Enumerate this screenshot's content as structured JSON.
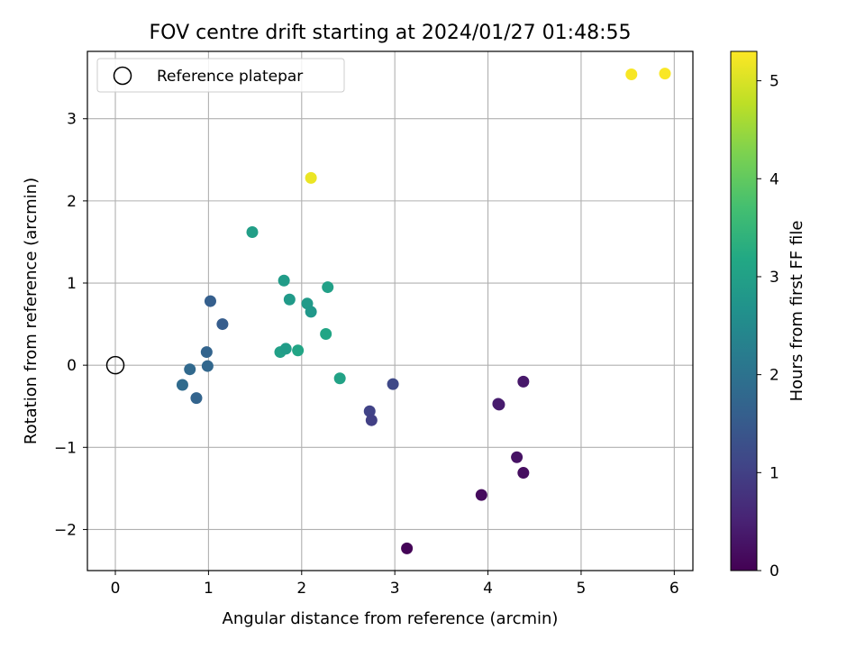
{
  "chart_data": {
    "type": "scatter",
    "title": "FOV centre drift starting at 2024/01/27 01:48:55",
    "xlabel": "Angular distance from reference (arcmin)",
    "ylabel": "Rotation from reference (arcmin)",
    "xlim": [
      -0.3,
      6.2
    ],
    "ylim": [
      -2.5,
      3.82
    ],
    "xticks": [
      0,
      1,
      2,
      3,
      4,
      5,
      6
    ],
    "xtick_labels": [
      "0",
      "1",
      "2",
      "3",
      "4",
      "5",
      "6"
    ],
    "yticks": [
      -2,
      -1,
      0,
      1,
      2,
      3
    ],
    "ytick_labels": [
      "−2",
      "−1",
      "0",
      "1",
      "2",
      "3"
    ],
    "grid": true,
    "legend": {
      "location": "upper-left",
      "entries": [
        "Reference platepar"
      ]
    },
    "reference_point": {
      "x": 0,
      "y": 0
    },
    "colorbar": {
      "label": "Hours from first FF file",
      "colormap": "viridis",
      "range": [
        0,
        5.3
      ],
      "ticks": [
        0,
        1,
        2,
        3,
        4,
        5
      ],
      "tick_labels": [
        "0",
        "1",
        "2",
        "3",
        "4",
        "5"
      ]
    },
    "points": [
      {
        "x": 5.54,
        "y": 3.54,
        "hours": 5.25
      },
      {
        "x": 5.9,
        "y": 3.55,
        "hours": 5.27
      },
      {
        "x": 2.1,
        "y": 2.28,
        "hours": 5.15
      },
      {
        "x": 1.47,
        "y": 1.62,
        "hours": 2.95
      },
      {
        "x": 1.81,
        "y": 1.03,
        "hours": 2.9
      },
      {
        "x": 1.87,
        "y": 0.8,
        "hours": 2.85
      },
      {
        "x": 2.28,
        "y": 0.95,
        "hours": 3.0
      },
      {
        "x": 2.06,
        "y": 0.75,
        "hours": 2.85
      },
      {
        "x": 2.1,
        "y": 0.65,
        "hours": 2.8
      },
      {
        "x": 2.26,
        "y": 0.38,
        "hours": 3.1
      },
      {
        "x": 1.77,
        "y": 0.16,
        "hours": 3.0
      },
      {
        "x": 1.83,
        "y": 0.2,
        "hours": 2.9
      },
      {
        "x": 1.96,
        "y": 0.18,
        "hours": 3.1
      },
      {
        "x": 2.41,
        "y": -0.16,
        "hours": 3.05
      },
      {
        "x": 1.02,
        "y": 0.78,
        "hours": 1.6
      },
      {
        "x": 1.15,
        "y": 0.5,
        "hours": 1.55
      },
      {
        "x": 0.98,
        "y": 0.16,
        "hours": 1.7
      },
      {
        "x": 0.99,
        "y": -0.01,
        "hours": 1.75
      },
      {
        "x": 0.8,
        "y": -0.05,
        "hours": 1.8
      },
      {
        "x": 0.72,
        "y": -0.24,
        "hours": 1.85
      },
      {
        "x": 0.87,
        "y": -0.4,
        "hours": 1.7
      },
      {
        "x": 2.98,
        "y": -0.23,
        "hours": 1.15
      },
      {
        "x": 2.73,
        "y": -0.56,
        "hours": 1.05
      },
      {
        "x": 2.75,
        "y": -0.67,
        "hours": 1.0
      },
      {
        "x": 4.38,
        "y": -0.2,
        "hours": 0.35
      },
      {
        "x": 4.11,
        "y": -0.47,
        "hours": 0.45
      },
      {
        "x": 4.12,
        "y": -0.48,
        "hours": 0.4
      },
      {
        "x": 4.31,
        "y": -1.12,
        "hours": 0.25
      },
      {
        "x": 4.38,
        "y": -1.31,
        "hours": 0.2
      },
      {
        "x": 3.93,
        "y": -1.58,
        "hours": 0.15
      },
      {
        "x": 3.13,
        "y": -2.23,
        "hours": 0.05
      }
    ]
  }
}
